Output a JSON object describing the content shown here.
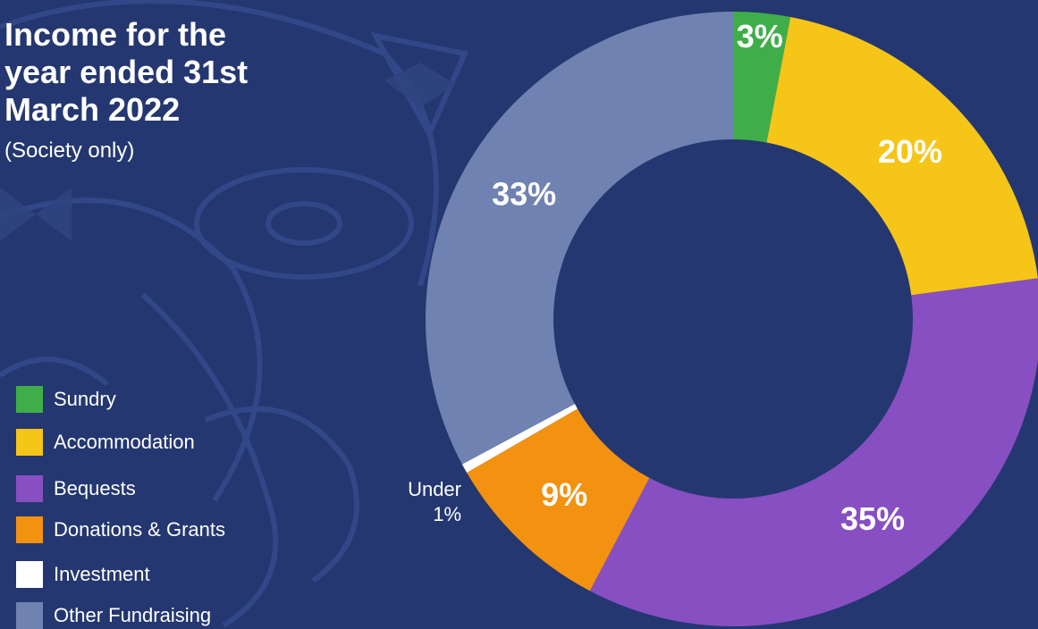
{
  "chart_data": {
    "type": "pie",
    "variant": "donut",
    "title": "Income for the year ended 31st March 2022",
    "subtitle": "(Society only)",
    "categories": [
      "Sundry",
      "Accommodation",
      "Bequests",
      "Donations & Grants",
      "Investment",
      "Other Fundraising"
    ],
    "values": [
      3,
      20,
      35,
      9,
      0.5,
      33
    ],
    "labels": [
      "3%",
      "20%",
      "35%",
      "9%",
      "Under 1%",
      "33%"
    ],
    "colors": [
      "#3fae49",
      "#f5c518",
      "#874fc2",
      "#f39110",
      "#ffffff",
      "#6f82b1"
    ],
    "legend_position": "left",
    "small_label": {
      "line1": "Under",
      "line2": "1%"
    }
  },
  "theme": {
    "background": "#243770",
    "pattern": "#2f4480"
  }
}
